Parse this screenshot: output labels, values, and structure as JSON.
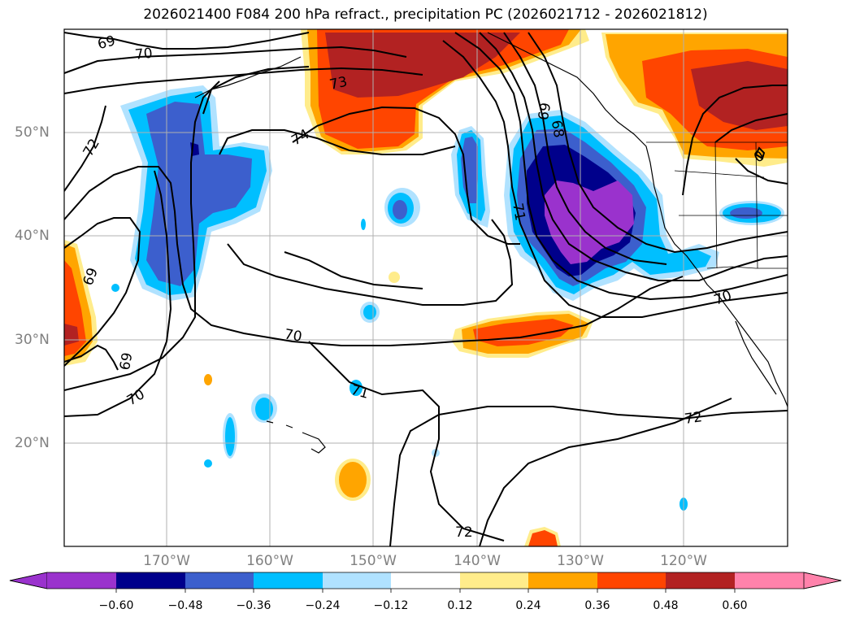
{
  "title": "2026021400 F084 200 hPa refract., precipitation PC (2026021712 - 2026021812)",
  "lon_labels": [
    "170°W",
    "160°W",
    "150°W",
    "140°W",
    "130°W",
    "120°W"
  ],
  "lat_labels": [
    "50°N",
    "40°N",
    "30°N",
    "20°N"
  ],
  "contour_labels": [
    "69",
    "70",
    "73",
    "74",
    "72",
    "69",
    "70",
    "69",
    "70",
    "71",
    "72",
    "68",
    "69",
    "71",
    "70",
    "0",
    "72"
  ],
  "colorbar": {
    "ticks": [
      "−0.60",
      "−0.48",
      "−0.36",
      "−0.24",
      "−0.12",
      "0.12",
      "0.24",
      "0.36",
      "0.48",
      "0.60"
    ],
    "colors": [
      "#9a32cd",
      "#00008b",
      "#3c5fcd",
      "#00bfff",
      "#b0e2ff",
      "#ffffff",
      "#ffec8b",
      "#ffa500",
      "#ff4500",
      "#b22222",
      "#ff82ab"
    ]
  }
}
